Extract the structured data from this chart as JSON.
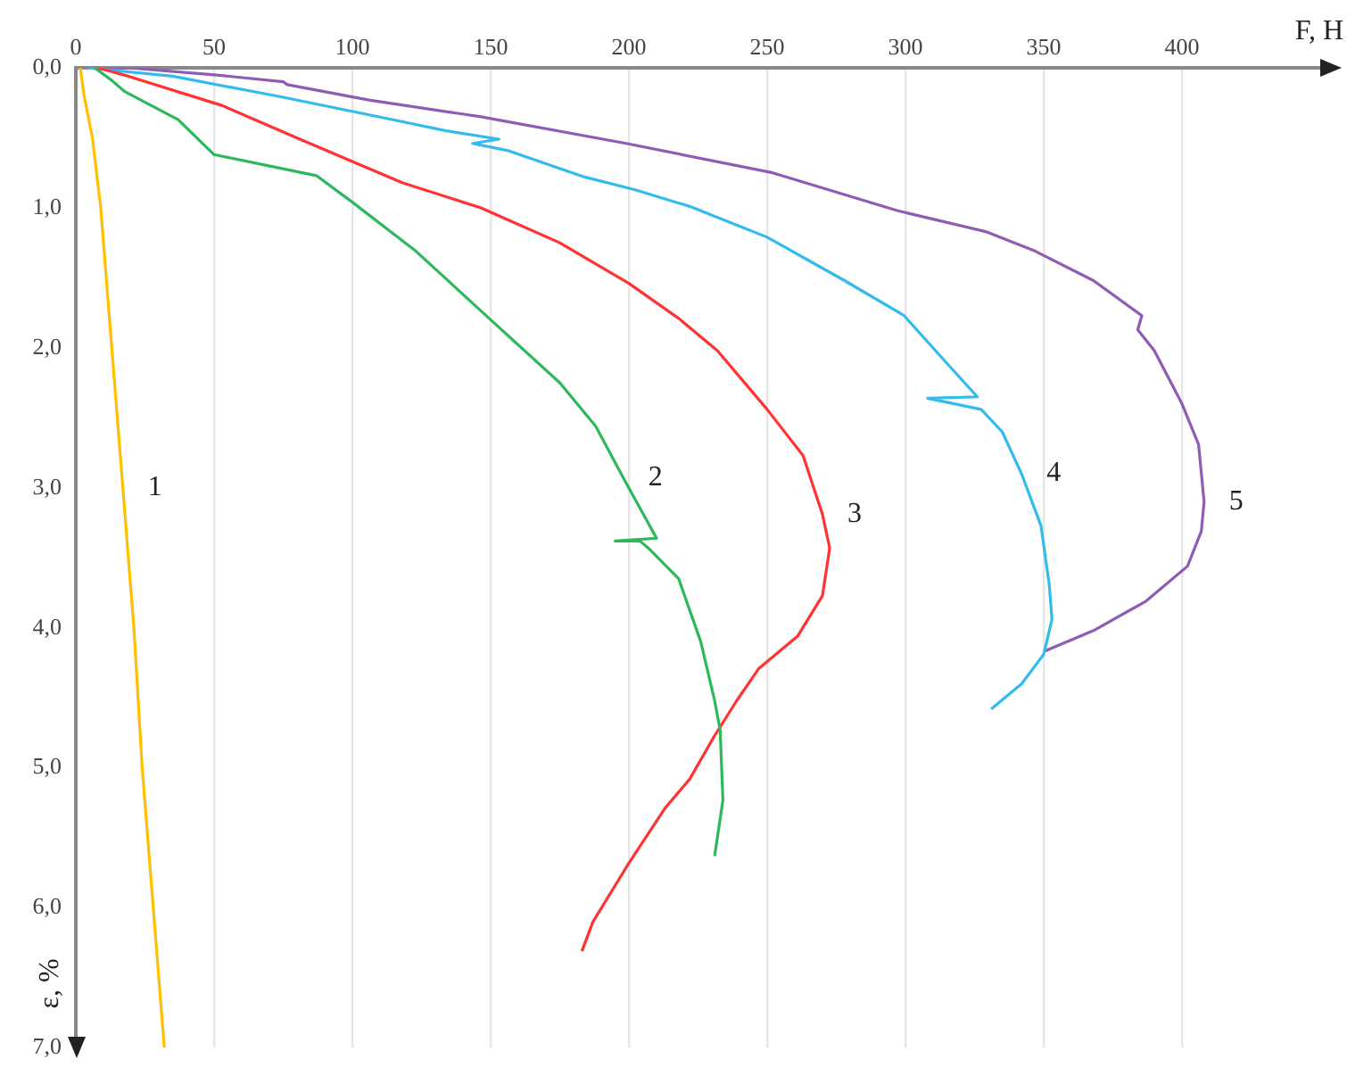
{
  "chart_data": {
    "type": "line",
    "xlabel": "F, H",
    "ylabel": "ε, %",
    "xlim": [
      0,
      450
    ],
    "xticks": [
      0,
      50,
      100,
      150,
      200,
      250,
      300,
      350,
      400
    ],
    "ylim": [
      7,
      0
    ],
    "yticks": [
      {
        "value": 0,
        "label": "0,0"
      },
      {
        "value": 1,
        "label": "1,0"
      },
      {
        "value": 2,
        "label": "2,0"
      },
      {
        "value": 3,
        "label": "3,0"
      },
      {
        "value": 4,
        "label": "4,0"
      },
      {
        "value": 5,
        "label": "5,0"
      },
      {
        "value": 6,
        "label": "6,0"
      },
      {
        "value": 7,
        "label": "7,0"
      }
    ],
    "grid": "x",
    "marker": "none",
    "legend": false,
    "series": [
      {
        "name": "1",
        "color": "#ffc000",
        "x": [
          1.6,
          3,
          6,
          9,
          13,
          17,
          21,
          24,
          28,
          32
        ],
        "values": [
          0,
          0.2,
          0.5,
          1.0,
          2.0,
          3.0,
          4.0,
          5.0,
          6.0,
          7.0
        ]
      },
      {
        "name": "2",
        "color": "#2eb85c",
        "x": [
          6.8,
          13,
          17.7,
          37,
          50,
          87,
          100,
          123,
          150,
          175,
          188,
          198,
          210,
          195,
          204,
          207,
          218,
          226,
          231,
          233,
          234,
          231
        ],
        "values": [
          0,
          0.09,
          0.17,
          0.37,
          0.62,
          0.77,
          0.96,
          1.31,
          1.8,
          2.25,
          2.56,
          2.93,
          3.36,
          3.38,
          3.38,
          3.43,
          3.65,
          4.1,
          4.52,
          4.73,
          5.23,
          5.63
        ]
      },
      {
        "name": "3",
        "color": "#ff3333",
        "x": [
          8,
          19,
          53,
          81,
          118,
          146.5,
          175,
          200,
          218,
          232,
          250,
          263,
          270,
          272.6,
          270,
          261,
          247,
          239,
          231,
          222,
          213,
          200,
          187,
          183
        ],
        "values": [
          0,
          0.06,
          0.27,
          0.51,
          0.82,
          1.0,
          1.25,
          1.54,
          1.79,
          2.02,
          2.44,
          2.77,
          3.19,
          3.43,
          3.77,
          4.06,
          4.29,
          4.52,
          4.77,
          5.08,
          5.29,
          5.68,
          6.1,
          6.31
        ]
      },
      {
        "name": "4",
        "color": "#33bbee",
        "x": [
          4,
          35,
          75,
          112,
          134,
          153,
          143.5,
          156,
          184,
          202,
          222,
          250,
          278,
          299.5,
          314.5,
          326,
          308,
          327.4,
          335,
          342,
          349,
          352,
          353,
          350,
          342,
          331
        ],
        "values": [
          0,
          0.06,
          0.21,
          0.36,
          0.45,
          0.51,
          0.54,
          0.59,
          0.78,
          0.87,
          0.99,
          1.21,
          1.52,
          1.77,
          2.1,
          2.35,
          2.36,
          2.44,
          2.6,
          2.9,
          3.27,
          3.69,
          3.94,
          4.19,
          4.4,
          4.58
        ]
      },
      {
        "name": "5",
        "color": "#8e5cb5",
        "x": [
          4,
          19,
          50,
          75,
          76.5,
          106,
          146.5,
          199,
          252,
          297,
          329,
          347,
          368,
          385.5,
          384,
          390,
          400,
          406,
          408,
          407,
          402,
          387,
          368,
          350
        ],
        "values": [
          0,
          0,
          0.05,
          0.1,
          0.12,
          0.23,
          0.35,
          0.54,
          0.75,
          1.02,
          1.17,
          1.31,
          1.52,
          1.77,
          1.87,
          2.02,
          2.4,
          2.69,
          3.1,
          3.31,
          3.56,
          3.81,
          4.02,
          4.17
        ]
      }
    ]
  }
}
